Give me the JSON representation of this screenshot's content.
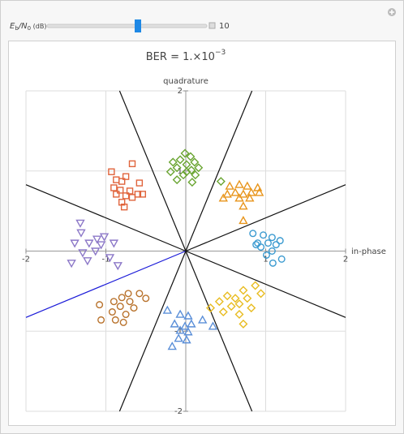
{
  "control": {
    "label_parts": [
      "E",
      "b",
      "/N",
      "0",
      " (dB)"
    ],
    "value": 10
  },
  "chart_data": {
    "type": "scatter",
    "title": "BER = 1.×10",
    "title_exponent": "−3",
    "x_label": "in-phase",
    "y_label": "quadrature",
    "xlim": [
      -2,
      2
    ],
    "ylim": [
      -2,
      2
    ],
    "xticks": [
      -2,
      -1,
      1,
      2
    ],
    "yticks": [
      -2,
      -1,
      1,
      2
    ],
    "grid": true,
    "series": [
      {
        "color": "#e0643c",
        "marker": "square",
        "x": [
          -0.93,
          -0.67,
          -0.75,
          -0.87,
          -0.8,
          -0.58,
          -0.9,
          -0.82,
          -0.7,
          -0.6,
          -0.87,
          -0.75,
          -0.67,
          -0.54,
          -0.8,
          -0.77
        ],
        "y": [
          0.99,
          1.09,
          0.93,
          0.89,
          0.87,
          0.85,
          0.79,
          0.76,
          0.75,
          0.71,
          0.71,
          0.69,
          0.67,
          0.71,
          0.61,
          0.55
        ]
      },
      {
        "color": "#6aa532",
        "marker": "diamond",
        "x": [
          -0.01,
          0.06,
          -0.07,
          -0.16,
          0.11,
          0.01,
          -0.11,
          0.16,
          0.07,
          -0.19,
          -0.03,
          0.12,
          -0.11,
          0.08,
          0.01,
          0.44
        ],
        "y": [
          1.22,
          1.18,
          1.14,
          1.11,
          1.11,
          1.08,
          1.04,
          1.04,
          1.01,
          0.99,
          0.95,
          0.95,
          0.89,
          0.86,
          0.99,
          0.87
        ]
      },
      {
        "color": "#e8951c",
        "marker": "triangle",
        "x": [
          0.55,
          0.67,
          0.77,
          0.9,
          0.52,
          0.62,
          0.72,
          0.82,
          0.47,
          0.67,
          0.8,
          0.72,
          0.72,
          0.92
        ],
        "y": [
          0.81,
          0.83,
          0.81,
          0.79,
          0.71,
          0.73,
          0.71,
          0.73,
          0.66,
          0.66,
          0.66,
          0.56,
          0.38,
          0.73
        ]
      },
      {
        "color": "#3a9ad0",
        "marker": "circle",
        "x": [
          0.84,
          0.97,
          1.08,
          1.18,
          0.9,
          1.03,
          1.13,
          0.94,
          1.08,
          1.01,
          1.2,
          1.09,
          0.88
        ],
        "y": [
          0.22,
          0.2,
          0.17,
          0.13,
          0.1,
          0.1,
          0.08,
          0.05,
          0.0,
          -0.05,
          -0.1,
          -0.15,
          0.08
        ]
      },
      {
        "color": "#e8bc20",
        "marker": "diamond",
        "x": [
          0.87,
          0.72,
          0.52,
          0.62,
          0.77,
          0.94,
          0.42,
          0.57,
          0.67,
          0.82,
          0.47,
          0.67,
          0.31,
          0.72
        ],
        "y": [
          -0.43,
          -0.49,
          -0.56,
          -0.59,
          -0.59,
          -0.53,
          -0.63,
          -0.69,
          -0.66,
          -0.71,
          -0.76,
          -0.79,
          -0.71,
          -0.91
        ]
      },
      {
        "color": "#5b8fd8",
        "marker": "triangle",
        "x": [
          -0.23,
          -0.07,
          0.03,
          0.21,
          -0.14,
          -0.01,
          0.07,
          -0.07,
          0.03,
          -0.09,
          0.01,
          -0.17,
          0.34
        ],
        "y": [
          -0.74,
          -0.79,
          -0.81,
          -0.86,
          -0.91,
          -0.94,
          -0.91,
          -0.99,
          -1.01,
          -1.09,
          -1.11,
          -1.19,
          -0.94
        ]
      },
      {
        "color": "#b8722c",
        "marker": "circle",
        "x": [
          -0.72,
          -0.8,
          -0.58,
          -0.9,
          -0.7,
          -0.5,
          -1.08,
          -0.82,
          -0.65,
          -0.92,
          -0.75,
          -1.06,
          -0.78,
          -0.88
        ],
        "y": [
          -0.53,
          -0.58,
          -0.53,
          -0.63,
          -0.63,
          -0.59,
          -0.67,
          -0.69,
          -0.71,
          -0.76,
          -0.79,
          -0.86,
          -0.89,
          -0.86
        ]
      },
      {
        "color": "#8c78c8",
        "marker": "down-triangle",
        "x": [
          -1.32,
          -1.31,
          -1.11,
          -1.02,
          -1.39,
          -1.21,
          -1.06,
          -0.9,
          -1.29,
          -1.13,
          -0.95,
          -1.43,
          -1.23,
          -0.85
        ],
        "y": [
          0.35,
          0.23,
          0.15,
          0.18,
          0.1,
          0.1,
          0.08,
          0.1,
          -0.02,
          0.0,
          -0.08,
          -0.15,
          -0.12,
          -0.18
        ]
      }
    ]
  }
}
